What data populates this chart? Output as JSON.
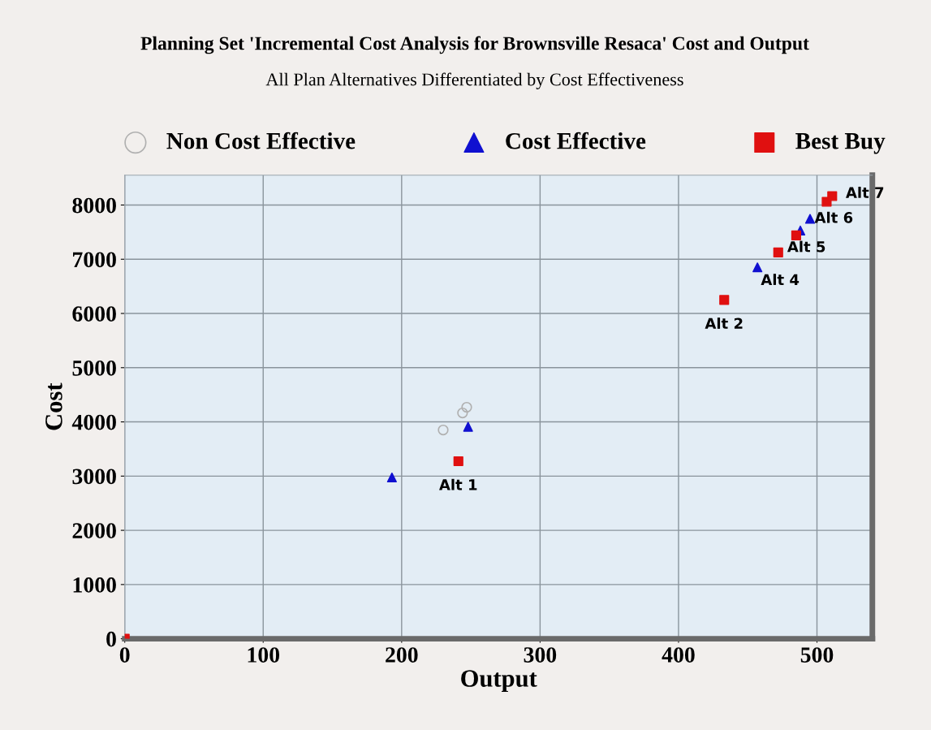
{
  "chart_data": {
    "type": "scatter",
    "title": "Planning Set 'Incremental Cost Analysis for Brownsville Resaca' Cost and Output",
    "subtitle": "All Plan Alternatives Differentiated by Cost Effectiveness",
    "xlabel": "Output",
    "ylabel": "Cost",
    "series": [
      {
        "name": "Non Cost Effective",
        "color": "#b0b0b0",
        "marker": "circle",
        "x": [
          230,
          244,
          247
        ],
        "values": [
          3850,
          4165,
          4270
        ]
      },
      {
        "name": "Cost Effective",
        "color": "#1010d0",
        "marker": "triangle",
        "x": [
          193,
          248,
          457,
          488,
          495
        ],
        "values": [
          2975,
          3910,
          6850,
          7530,
          7745
        ]
      },
      {
        "name": "Best Buy",
        "color": "#e01010",
        "marker": "square",
        "x": [
          0,
          241,
          433,
          472,
          485,
          507,
          511
        ],
        "values": [
          0,
          3275,
          6250,
          7125,
          7440,
          8060,
          8165
        ]
      }
    ],
    "annotations": [
      {
        "text": "Alt 1",
        "x": 241,
        "y": 3275
      },
      {
        "text": "Alt 2",
        "x": 433,
        "y": 6250
      },
      {
        "text": "Alt 4",
        "x": 457,
        "y": 6850
      },
      {
        "text": "Alt 5",
        "x": 472,
        "y": 7125
      },
      {
        "text": "Alt 6",
        "x": 495,
        "y": 7745
      },
      {
        "text": "Alt 7",
        "x": 511,
        "y": 8165
      }
    ],
    "xlim": [
      0,
      540
    ],
    "ylim": [
      0,
      8550
    ],
    "xticks": [
      0,
      100,
      200,
      300,
      400,
      500
    ],
    "yticks": [
      0,
      1000,
      2000,
      3000,
      4000,
      5000,
      6000,
      7000,
      8000
    ],
    "grid": true,
    "legend": "top"
  }
}
